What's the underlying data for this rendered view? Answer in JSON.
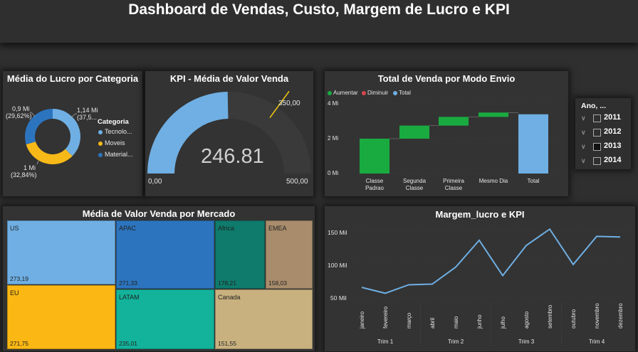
{
  "header": {
    "title": "Dashboard de Vendas, Custo, Margem de Lucro e KPI"
  },
  "donut": {
    "title": "Média do Lucro por Categoria",
    "legend_title": "Categoria",
    "legend": [
      {
        "name": "Tecnolo...",
        "color": "#6fafe3"
      },
      {
        "name": "Moveis",
        "color": "#f7b918"
      },
      {
        "name": "Material...",
        "color": "#2c74be"
      }
    ],
    "labels": {
      "tech_value": "1,14 Mi",
      "tech_pct": "(37,5...",
      "moveis_value": "1 Mi",
      "moveis_pct": "(32,84%)",
      "material_value": "0,9 Mi",
      "material_pct": "(29,62%)"
    },
    "chart_data": {
      "type": "pie",
      "slices": [
        {
          "name": "Tecnolo...",
          "value": 1.14,
          "color": "#6fafe3"
        },
        {
          "name": "Moveis",
          "value": 1.0,
          "color": "#f7b918"
        },
        {
          "name": "Material...",
          "value": 0.9,
          "color": "#2c74be"
        }
      ]
    }
  },
  "gauge": {
    "title": "KPI - Média de Valor Venda",
    "value_text": "246.81",
    "min_text": "0,00",
    "max_text": "500,00",
    "target_text": "350,00",
    "chart_data": {
      "type": "gauge",
      "value": 246.81,
      "min": 0,
      "max": 500,
      "target": 350
    }
  },
  "waterfall": {
    "title": "Total de Venda por Modo Envio",
    "legend": [
      {
        "name": "Aumentar",
        "color": "#1aab40"
      },
      {
        "name": "Diminuir",
        "color": "#d64550"
      },
      {
        "name": "Total",
        "color": "#6fafe3"
      }
    ],
    "y_ticks": [
      "4 Mi",
      "2 Mi",
      "0 Mi"
    ],
    "categories": [
      [
        "Classe",
        "Padrao"
      ],
      [
        "Segunda",
        "Classe"
      ],
      [
        "Primeira",
        "Classe"
      ],
      [
        "Mesmo Dia"
      ],
      [
        "Total"
      ]
    ],
    "chart_data": {
      "type": "bar",
      "subtype": "waterfall",
      "categories": [
        "Classe Padrao",
        "Segunda Classe",
        "Primeira Classe",
        "Mesmo Dia",
        "Total"
      ],
      "values": [
        2.0,
        0.75,
        0.5,
        0.25,
        3.4
      ],
      "is_total": [
        false,
        false,
        false,
        false,
        true
      ],
      "ylim": [
        0,
        4
      ]
    }
  },
  "slicer": {
    "title": "Ano, ...",
    "items": [
      {
        "label": "2011",
        "checked": false
      },
      {
        "label": "2012",
        "checked": false
      },
      {
        "label": "2013",
        "checked": true
      },
      {
        "label": "2014",
        "checked": false
      }
    ]
  },
  "treemap": {
    "title": "Média de Valor Venda por Mercado",
    "chart_data": {
      "type": "treemap",
      "items": [
        {
          "name": "US",
          "value": 273.19,
          "label": "273,19",
          "color": "#6fafe3"
        },
        {
          "name": "APAC",
          "value": 271.33,
          "label": "271,33",
          "color": "#2c74be"
        },
        {
          "name": "Africa",
          "value": 178.21,
          "label": "178,21",
          "color": "#0e7b6c"
        },
        {
          "name": "EMEA",
          "value": 158.03,
          "label": "158,03",
          "color": "#a88c6c"
        },
        {
          "name": "EU",
          "value": 271.75,
          "label": "271,75",
          "color": "#fbb713"
        },
        {
          "name": "LATAM",
          "value": 235.01,
          "label": "235,01",
          "color": "#12b39a"
        },
        {
          "name": "Canada",
          "value": 151.55,
          "label": "151,55",
          "color": "#c8b17f"
        }
      ]
    }
  },
  "line": {
    "title": "Margem_lucro e KPI",
    "y_ticks": [
      "150 Mil",
      "100 Mil",
      "50 Mil"
    ],
    "quarters": [
      "Trim 1",
      "Trim 2",
      "Trim 3",
      "Trim 4"
    ],
    "chart_data": {
      "type": "line",
      "x": [
        "janeiro",
        "fevereiro",
        "março",
        "abril",
        "maio",
        "junho",
        "julho",
        "agosto",
        "setembro",
        "outubro",
        "novembro",
        "dezembro"
      ],
      "series": [
        {
          "values": [
            64,
            55,
            68,
            69,
            95,
            136,
            82,
            128,
            153,
            99,
            142,
            141
          ]
        }
      ],
      "ylim": [
        40,
        160
      ]
    }
  }
}
